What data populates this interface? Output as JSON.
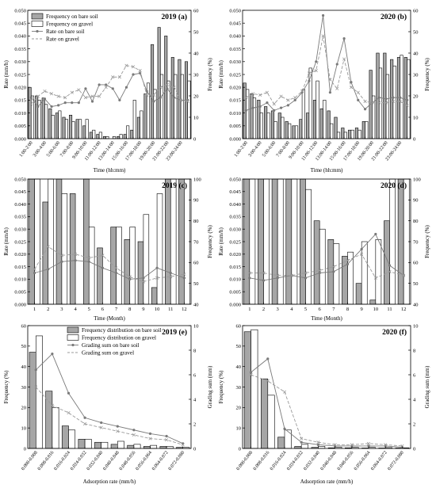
{
  "colors": {
    "bar_bare": "#a6a6a6",
    "bar_gravel": "#ffffff",
    "line_bare": "#7a7a7a",
    "line_gravel": "#9a9a9a",
    "axis": "#000000"
  },
  "chart_data": [
    {
      "id": "a",
      "type": "bar+line",
      "title": "2019 (a)",
      "xlabel": "Time (hh:mm)",
      "ylabel": "Rate (mm/h)",
      "y2label": "Frequency (%)",
      "ylim": [
        0,
        0.05
      ],
      "y2lim": [
        0,
        60
      ],
      "yticks": [
        "0.000",
        "0.005",
        "0.010",
        "0.015",
        "0.020",
        "0.025",
        "0.030",
        "0.035",
        "0.040",
        "0.045",
        "0.050"
      ],
      "y2ticks": [
        "0",
        "10",
        "20",
        "30",
        "40",
        "50",
        "60"
      ],
      "xtick_labels": [
        "1:00-2:00",
        "3:00-4:00",
        "5:00-6:00",
        "7:00-8:00",
        "9:00-10:00",
        "11:00-12:00",
        "13:00-14:00",
        "15:00-16:00",
        "17:00-18:00",
        "19:00-20:00",
        "21:00-22:00",
        "23:00-24:00"
      ],
      "categories": [
        "1",
        "2",
        "3",
        "4",
        "5",
        "6",
        "7",
        "8",
        "9",
        "10",
        "11",
        "12",
        "13",
        "14",
        "15",
        "16",
        "17",
        "18",
        "19",
        "20",
        "21",
        "22",
        "23",
        "24"
      ],
      "legend": [
        "Frequency on bare soil",
        "Frequency on gravel",
        "Rate on bare soil",
        "Rate on gravel"
      ],
      "series": [
        {
          "name": "Frequency on bare soil",
          "kind": "bar",
          "axis": "right",
          "values": [
            24,
            20,
            19,
            14,
            12,
            10,
            11,
            9,
            6,
            3,
            2,
            1,
            0,
            1,
            2,
            4,
            10,
            21,
            44,
            52,
            48,
            38,
            37,
            36
          ]
        },
        {
          "name": "Frequency on gravel",
          "kind": "bar",
          "axis": "right",
          "values": [
            20,
            18,
            16,
            11,
            13,
            9,
            8,
            9,
            9,
            4,
            3,
            1,
            1,
            2,
            6,
            18,
            13,
            26,
            23,
            30,
            27,
            30,
            30,
            27
          ]
        },
        {
          "name": "Rate on bare soil",
          "kind": "line",
          "axis": "left",
          "values": [
            0.016,
            0.0125,
            0.0155,
            0.0125,
            0.013,
            0.014,
            0.014,
            0.014,
            0.0195,
            0.0145,
            0.021,
            0.021,
            0.0195,
            0.015,
            0.02,
            0.025,
            0.0255,
            0.0185,
            0.0145,
            0.016,
            0.0195,
            0.016,
            0.015,
            0.015
          ]
        },
        {
          "name": "Rate on gravel",
          "kind": "line",
          "axis": "left",
          "values": [
            0.0135,
            0.0165,
            0.0185,
            0.0175,
            0.0165,
            0.016,
            0.018,
            0.019,
            0.016,
            0.0165,
            0.0165,
            0.02,
            0.024,
            0.024,
            0.0285,
            0.028,
            0.0265,
            0.017,
            0.017,
            0.02,
            0.021,
            0.02,
            0.015,
            0.0145
          ]
        }
      ]
    },
    {
      "id": "b",
      "type": "bar+line",
      "title": "2020 (b)",
      "xlabel": "Time (hh:mm)",
      "ylabel": "Rate (mm/h)",
      "y2label": "Frequency (%)",
      "ylim": [
        0,
        0.05
      ],
      "y2lim": [
        0,
        60
      ],
      "yticks": [
        "0.000",
        "0.005",
        "0.010",
        "0.015",
        "0.020",
        "0.025",
        "0.030",
        "0.035",
        "0.040",
        "0.045",
        "0.050"
      ],
      "y2ticks": [
        "0",
        "10",
        "20",
        "30",
        "40",
        "50",
        "60"
      ],
      "xtick_labels": [
        "1:00-2:00",
        "3:00-4:00",
        "5:00-6:00",
        "7:00-8:00",
        "9:00-10:00",
        "11:00-12:00",
        "13:00-14:00",
        "15:00-16:00",
        "17:00-18:00",
        "19:00-20:00",
        "21:00-22:00",
        "23:00-24:00"
      ],
      "categories": [
        "1",
        "2",
        "3",
        "4",
        "5",
        "6",
        "7",
        "8",
        "9",
        "10",
        "11",
        "12",
        "13",
        "14",
        "15",
        "16",
        "17",
        "18",
        "19",
        "20",
        "21",
        "22",
        "23",
        "24"
      ],
      "legend": [
        "Frequency on bare soil",
        "Frequency on gravel",
        "Rate on bare soil",
        "Rate on gravel"
      ],
      "series": [
        {
          "name": "Frequency on bare soil",
          "kind": "bar",
          "axis": "right",
          "values": [
            26,
            21,
            18,
            15,
            13,
            12,
            8,
            6,
            9,
            12,
            18,
            14,
            13,
            10,
            5,
            4,
            5,
            8,
            32,
            40,
            40,
            37,
            38,
            38
          ]
        },
        {
          "name": "Frequency on gravel",
          "kind": "bar",
          "axis": "right",
          "values": [
            23,
            19,
            12,
            12,
            8,
            10,
            7,
            6,
            23,
            33,
            27,
            18,
            7,
            3,
            3,
            4,
            4,
            8,
            20,
            33,
            30,
            34,
            39,
            37
          ]
        },
        {
          "name": "Rate on bare soil",
          "kind": "line",
          "axis": "left",
          "values": [
            0.011,
            0.012,
            0.0125,
            0.014,
            0.011,
            0.012,
            0.013,
            0.015,
            0.018,
            0.0225,
            0.03,
            0.048,
            0.018,
            0.029,
            0.039,
            0.022,
            0.015,
            0.0115,
            0.014,
            0.016,
            0.0155,
            0.016,
            0.016,
            0.015
          ]
        },
        {
          "name": "Rate on gravel",
          "kind": "line",
          "axis": "left",
          "values": [
            0.016,
            0.0175,
            0.017,
            0.018,
            0.0135,
            0.0165,
            0.015,
            0.016,
            0.0185,
            0.0255,
            0.0265,
            0.04,
            0.023,
            0.0195,
            0.031,
            0.02,
            0.018,
            0.0145,
            0.014,
            0.014,
            0.014,
            0.0145,
            0.0145,
            0.013
          ]
        }
      ]
    },
    {
      "id": "c",
      "type": "bar+line",
      "title": "2019 (c)",
      "xlabel": "Time (Month)",
      "ylabel": "Rate (mm/h)",
      "y2label": "Frequency (%)",
      "ylim": [
        0,
        0.05
      ],
      "y2lim": [
        40,
        100
      ],
      "yticks": [
        "0.000",
        "0.005",
        "0.010",
        "0.015",
        "0.020",
        "0.025",
        "0.030",
        "0.035",
        "0.040",
        "0.045",
        "0.050"
      ],
      "y2ticks": [
        "40",
        "50",
        "60",
        "70",
        "80",
        "90",
        "100"
      ],
      "xtick_labels": [
        "1",
        "2",
        "3",
        "4",
        "5",
        "6",
        "7",
        "8",
        "9",
        "10",
        "11",
        "12"
      ],
      "categories": [
        "1",
        "2",
        "3",
        "4",
        "5",
        "6",
        "7",
        "8",
        "9",
        "10",
        "11",
        "12"
      ],
      "series": [
        {
          "name": "Frequency on bare soil",
          "kind": "bar",
          "axis": "right",
          "values": [
            100,
            89,
            100,
            93,
            100,
            67,
            77,
            71,
            70,
            48,
            100,
            100
          ]
        },
        {
          "name": "Frequency on gravel",
          "kind": "bar",
          "axis": "right",
          "values": [
            100,
            100,
            93,
            null,
            77,
            null,
            77,
            77,
            83,
            93,
            100,
            100
          ]
        },
        {
          "name": "Rate on bare soil",
          "kind": "line",
          "axis": "left",
          "values": [
            0.0125,
            0.014,
            0.017,
            0.0175,
            0.017,
            0.0145,
            0.0125,
            0.01,
            0.0105,
            0.0145,
            0.0125,
            0.0105
          ]
        },
        {
          "name": "Rate on gravel",
          "kind": "line",
          "axis": "left",
          "values": [
            0.014,
            0.023,
            0.0195,
            0.02,
            0.0185,
            0.0195,
            0.0145,
            0.011,
            0.009,
            0.0105,
            0.011,
            0.012
          ]
        }
      ]
    },
    {
      "id": "d",
      "type": "bar+line",
      "title": "2020 (d)",
      "xlabel": "Time (Month)",
      "ylabel": "Rate (mm/h)",
      "y2label": "Frequency (%)",
      "ylim": [
        0,
        0.05
      ],
      "y2lim": [
        40,
        100
      ],
      "yticks": [
        "0.000",
        "0.005",
        "0.010",
        "0.015",
        "0.020",
        "0.025",
        "0.030",
        "0.035",
        "0.040",
        "0.045",
        "0.050"
      ],
      "y2ticks": [
        "40",
        "50",
        "60",
        "70",
        "80",
        "90",
        "100"
      ],
      "xtick_labels": [
        "1",
        "2",
        "3",
        "4",
        "5",
        "6",
        "7",
        "8",
        "9",
        "10",
        "11",
        "12"
      ],
      "categories": [
        "1",
        "2",
        "3",
        "4",
        "5",
        "6",
        "7",
        "8",
        "9",
        "10",
        "11",
        "12"
      ],
      "series": [
        {
          "name": "Frequency on bare soil",
          "kind": "bar",
          "axis": "right",
          "values": [
            100,
            100,
            100,
            100,
            100,
            80,
            71,
            63,
            50,
            42,
            80,
            100
          ]
        },
        {
          "name": "Frequency on gravel",
          "kind": "bar",
          "axis": "right",
          "values": [
            100,
            100,
            100,
            100,
            95,
            76,
            69,
            65,
            70,
            71,
            100,
            100
          ]
        },
        {
          "name": "Rate on bare soil",
          "kind": "line",
          "axis": "left",
          "values": [
            0.0105,
            0.0095,
            0.0105,
            0.0115,
            0.0105,
            0.0125,
            0.013,
            0.016,
            0.022,
            0.028,
            0.0155,
            0.0115
          ]
        },
        {
          "name": "Rate on gravel",
          "kind": "line",
          "axis": "left",
          "values": [
            0.0125,
            0.0125,
            0.0115,
            0.0115,
            0.0125,
            0.0135,
            0.015,
            0.0175,
            0.02,
            0.0105,
            0.013,
            0.0115
          ]
        }
      ]
    },
    {
      "id": "e",
      "type": "bar+line",
      "title": "2019 (e)",
      "xlabel": "Adsorption rate (mm/h)",
      "ylabel": "Frequency (%)",
      "y2label": "Grading sum (mm)",
      "ylim": [
        0,
        60
      ],
      "y2lim": [
        0,
        10
      ],
      "yticks": [
        "0",
        "10",
        "20",
        "30",
        "40",
        "50",
        "60"
      ],
      "y2ticks": [
        "0",
        "2",
        "4",
        "6",
        "8",
        "10"
      ],
      "xtick_labels": [
        "0.000-0.008",
        "0.008-0.016",
        "0.016-0.024",
        "0.024-0.032",
        "0.032-0.040",
        "0.040-0.048",
        "0.048-0.056",
        "0.056-0.064",
        "0.064-0.072",
        "0.072-0.080"
      ],
      "categories": [
        "1",
        "2",
        "3",
        "4",
        "5",
        "6",
        "7",
        "8",
        "9",
        "10"
      ],
      "legend": [
        "Frequency distribution on bare soil",
        "Frequency distribution on gravel",
        "Grading sum on bare soil",
        "Grading sum on gravel"
      ],
      "series": [
        {
          "name": "Frequency distribution on bare soil",
          "kind": "bar",
          "axis": "left",
          "values": [
            47,
            28,
            11,
            4.5,
            3,
            2,
            1.5,
            1,
            1,
            0.5
          ]
        },
        {
          "name": "Frequency distribution on gravel",
          "kind": "bar",
          "axis": "left",
          "values": [
            55,
            20,
            9,
            4.5,
            3,
            3.5,
            2,
            1.5,
            1,
            0.5
          ]
        },
        {
          "name": "Grading sum on bare soil",
          "kind": "line",
          "axis": "right",
          "values": [
            6.4,
            7.7,
            4.5,
            2.5,
            2.1,
            1.8,
            1.5,
            1.2,
            1.0,
            0.4
          ]
        },
        {
          "name": "Grading sum on gravel",
          "kind": "line",
          "axis": "right",
          "values": [
            5.0,
            3.5,
            2.9,
            2.0,
            1.7,
            1.4,
            1.1,
            0.8,
            0.7,
            0.3
          ]
        }
      ]
    },
    {
      "id": "f",
      "type": "bar+line",
      "title": "2020 (f)",
      "xlabel": "Adsorption rate (mm/h)",
      "ylabel": "Frequency (%)",
      "y2label": "Grading sum (mm)",
      "ylim": [
        0,
        60
      ],
      "y2lim": [
        0,
        10
      ],
      "yticks": [
        "0",
        "10",
        "20",
        "30",
        "40",
        "50",
        "60"
      ],
      "y2ticks": [
        "0",
        "2",
        "4",
        "6",
        "8",
        "10"
      ],
      "xtick_labels": [
        "0.000-0.008",
        "0.008-0.016",
        "0.016-0.024",
        "0.024-0.032",
        "0.032-0.040",
        "0.040-0.048",
        "0.048-0.056",
        "0.056-0.064",
        "0.064-0.072",
        "0.072-0.080"
      ],
      "categories": [
        "1",
        "2",
        "3",
        "4",
        "5",
        "6",
        "7",
        "8",
        "9",
        "10"
      ],
      "series": [
        {
          "name": "Frequency distribution on bare soil",
          "kind": "bar",
          "axis": "left",
          "values": [
            57,
            34,
            5.5,
            1,
            0.5,
            0.3,
            0.3,
            0.2,
            0.2,
            0.2
          ]
        },
        {
          "name": "Frequency distribution on gravel",
          "kind": "bar",
          "axis": "left",
          "values": [
            58,
            26,
            9,
            2,
            1,
            0.6,
            0.5,
            0.5,
            0.4,
            0.3
          ]
        },
        {
          "name": "Grading sum on bare soil",
          "kind": "line",
          "axis": "right",
          "values": [
            6.2,
            7.3,
            1.6,
            0.5,
            0.3,
            0.2,
            0.2,
            0.2,
            0.2,
            0.1
          ]
        },
        {
          "name": "Grading sum on gravel",
          "kind": "line",
          "axis": "right",
          "values": [
            6.0,
            5.5,
            4.6,
            0.8,
            0.5,
            0.3,
            0.3,
            0.4,
            0.3,
            0.2
          ]
        }
      ]
    }
  ]
}
